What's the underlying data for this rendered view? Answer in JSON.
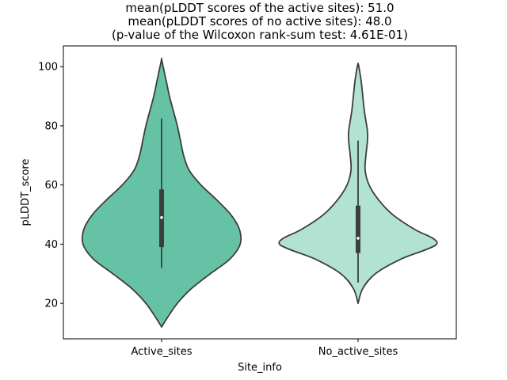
{
  "chart_data": {
    "type": "violin",
    "title_lines": [
      "mean(pLDDT scores of the active sites): 51.0",
      "mean(pLDDT scores of no active sites): 48.0",
      "(p-value of the Wilcoxon rank-sum test: 4.61E-01)"
    ],
    "xlabel": "Site_info",
    "ylabel": "pLDDT_score",
    "categories": [
      "Active_sites",
      "No_active_sites"
    ],
    "ylim": [
      8,
      107
    ],
    "yticks": [
      20,
      40,
      60,
      80,
      100
    ],
    "yticklabels": [
      "20",
      "40",
      "60",
      "80",
      "100"
    ],
    "grid": false,
    "legend": "none",
    "colors": {
      "Active_sites": "#66c2a5",
      "No_active_sites": "#b2e2d2",
      "edge": "#3d3d3d",
      "box": "#3d3d3d",
      "median": "#ffffff"
    },
    "series": [
      {
        "category": "Active_sites",
        "density_y": [
          12,
          15,
          20,
          25,
          30,
          35,
          40,
          45,
          50,
          55,
          60,
          65,
          70,
          75,
          80,
          85,
          90,
          95,
          100,
          102.5
        ],
        "density_w": [
          0.0,
          0.07,
          0.2,
          0.38,
          0.62,
          0.87,
          1.0,
          0.99,
          0.88,
          0.7,
          0.5,
          0.35,
          0.28,
          0.24,
          0.2,
          0.15,
          0.1,
          0.06,
          0.02,
          0.0
        ],
        "whisker_low": 32,
        "q1": 39,
        "median": 49,
        "q3": 58.5,
        "whisker_high": 82.5
      },
      {
        "category": "No_active_sites",
        "density_y": [
          20,
          25,
          30,
          35,
          38,
          40,
          42,
          45,
          50,
          55,
          60,
          65,
          70,
          75,
          78,
          80,
          85,
          90,
          95,
          100,
          101
        ],
        "density_w": [
          0.0,
          0.06,
          0.22,
          0.55,
          0.85,
          1.0,
          0.95,
          0.72,
          0.44,
          0.26,
          0.14,
          0.09,
          0.1,
          0.12,
          0.12,
          0.11,
          0.08,
          0.06,
          0.04,
          0.01,
          0.0
        ],
        "whisker_low": 27,
        "q1": 37,
        "median": 42,
        "q3": 53,
        "whisker_high": 75
      }
    ]
  }
}
